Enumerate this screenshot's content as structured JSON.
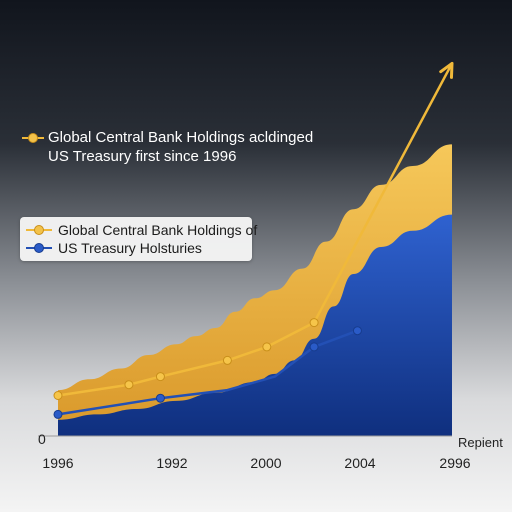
{
  "chart_data": {
    "type": "area",
    "title": "",
    "xlabel": "",
    "ylabel": "",
    "x_tick_labels": [
      "1996",
      "1992",
      "2000",
      "2004",
      "2996"
    ],
    "y_tick_labels": [
      "0"
    ],
    "axis_end_label": "Repient",
    "annotation": {
      "line1": "Global Central Bank Holdings acldinged",
      "line2": "US Treasury first since 1996",
      "color": "#f0b93a"
    },
    "legend": {
      "placement": "middle-left",
      "entries": [
        {
          "line1": "Global Central Bank Holdings of",
          "color": "#f0b93a"
        },
        {
          "line1": "US Treasury Holsturies",
          "color": "#2350b5"
        }
      ]
    },
    "ylim": [
      0,
      100
    ],
    "grid": false,
    "series": [
      {
        "kind": "area",
        "color": "#f2b947",
        "x": [
          0,
          8,
          16,
          23,
          30,
          35,
          40,
          45,
          50,
          55,
          62,
          68,
          75,
          82,
          90,
          100
        ],
        "values": [
          17,
          21,
          25,
          30,
          34,
          37,
          40,
          46,
          51,
          54,
          62,
          72,
          84,
          93,
          100,
          108
        ]
      },
      {
        "kind": "area",
        "color": "#1f4fb0",
        "x": [
          0,
          10,
          20,
          30,
          40,
          50,
          55,
          60,
          65,
          70,
          75,
          82,
          90,
          100
        ],
        "values": [
          6,
          8,
          10,
          13,
          16,
          20,
          23,
          28,
          36,
          48,
          60,
          70,
          76,
          82
        ]
      },
      {
        "kind": "line",
        "color": "#f0b93a",
        "x": [
          0,
          18,
          26,
          43,
          53,
          65,
          100
        ],
        "values": [
          15,
          19,
          22,
          28,
          33,
          42,
          138
        ],
        "markers": [
          0,
          18,
          26,
          43,
          53,
          65
        ],
        "arrow": true
      },
      {
        "kind": "line",
        "color": "#2350b5",
        "x": [
          0,
          26,
          43,
          55,
          65,
          76
        ],
        "values": [
          8,
          14,
          17,
          22,
          33,
          39
        ],
        "markers": [
          0,
          26,
          65,
          76
        ]
      }
    ]
  }
}
